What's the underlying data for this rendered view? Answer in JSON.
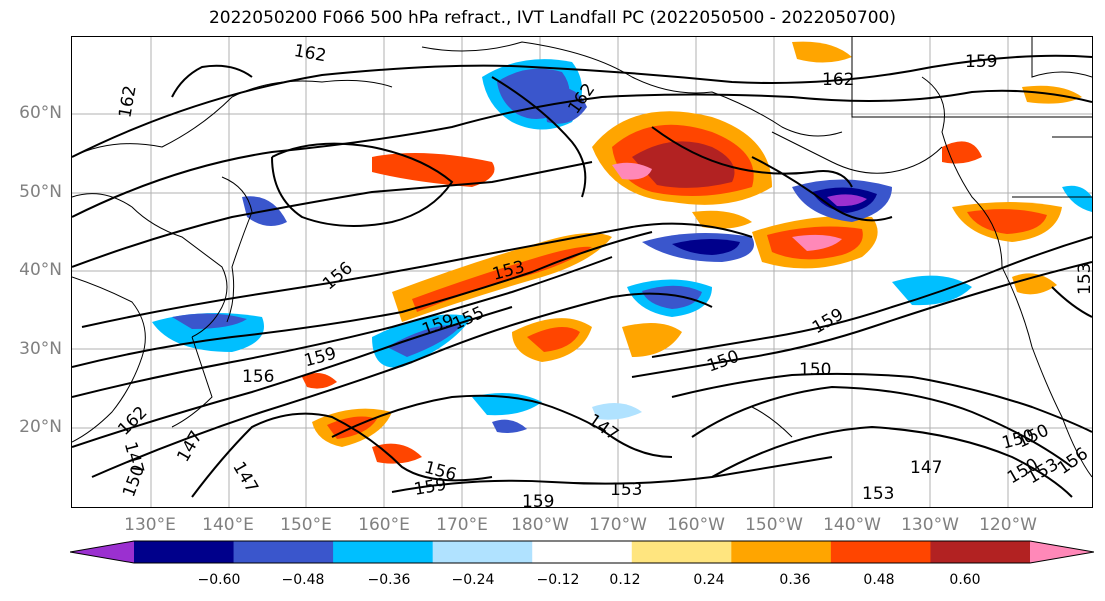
{
  "title": "2022050200 F066 500 hPa refract., IVT Landfall PC (2022050500 - 2022050700)",
  "lat_labels": [
    "60°N",
    "50°N",
    "40°N",
    "30°N",
    "20°N"
  ],
  "lon_labels": [
    "130°E",
    "140°E",
    "150°E",
    "160°E",
    "170°E",
    "180°W",
    "170°W",
    "160°W",
    "150°W",
    "140°W",
    "130°W",
    "120°W"
  ],
  "colorbar": {
    "colors": [
      "#9b30d0",
      "#00008b",
      "#3a56cc",
      "#00bfff",
      "#b0e2ff",
      "#ffffff",
      "#ffe57f",
      "#ffa500",
      "#ff4500",
      "#b22222",
      "#ff88b8"
    ],
    "tick_labels": [
      "−0.60",
      "−0.48",
      "−0.36",
      "−0.24",
      "−0.12",
      "0.12",
      "0.24",
      "0.36",
      "0.48",
      "0.60"
    ]
  },
  "contour_labels": [
    "162",
    "162",
    "162",
    "162",
    "159",
    "156",
    "153",
    "159",
    "155",
    "159",
    "156",
    "150",
    "150",
    "159",
    "150",
    "153",
    "147",
    "147",
    "156",
    "159",
    "153",
    "159",
    "147",
    "153",
    "150",
    "150",
    "153",
    "156",
    "162",
    "147",
    "150",
    "147"
  ]
}
